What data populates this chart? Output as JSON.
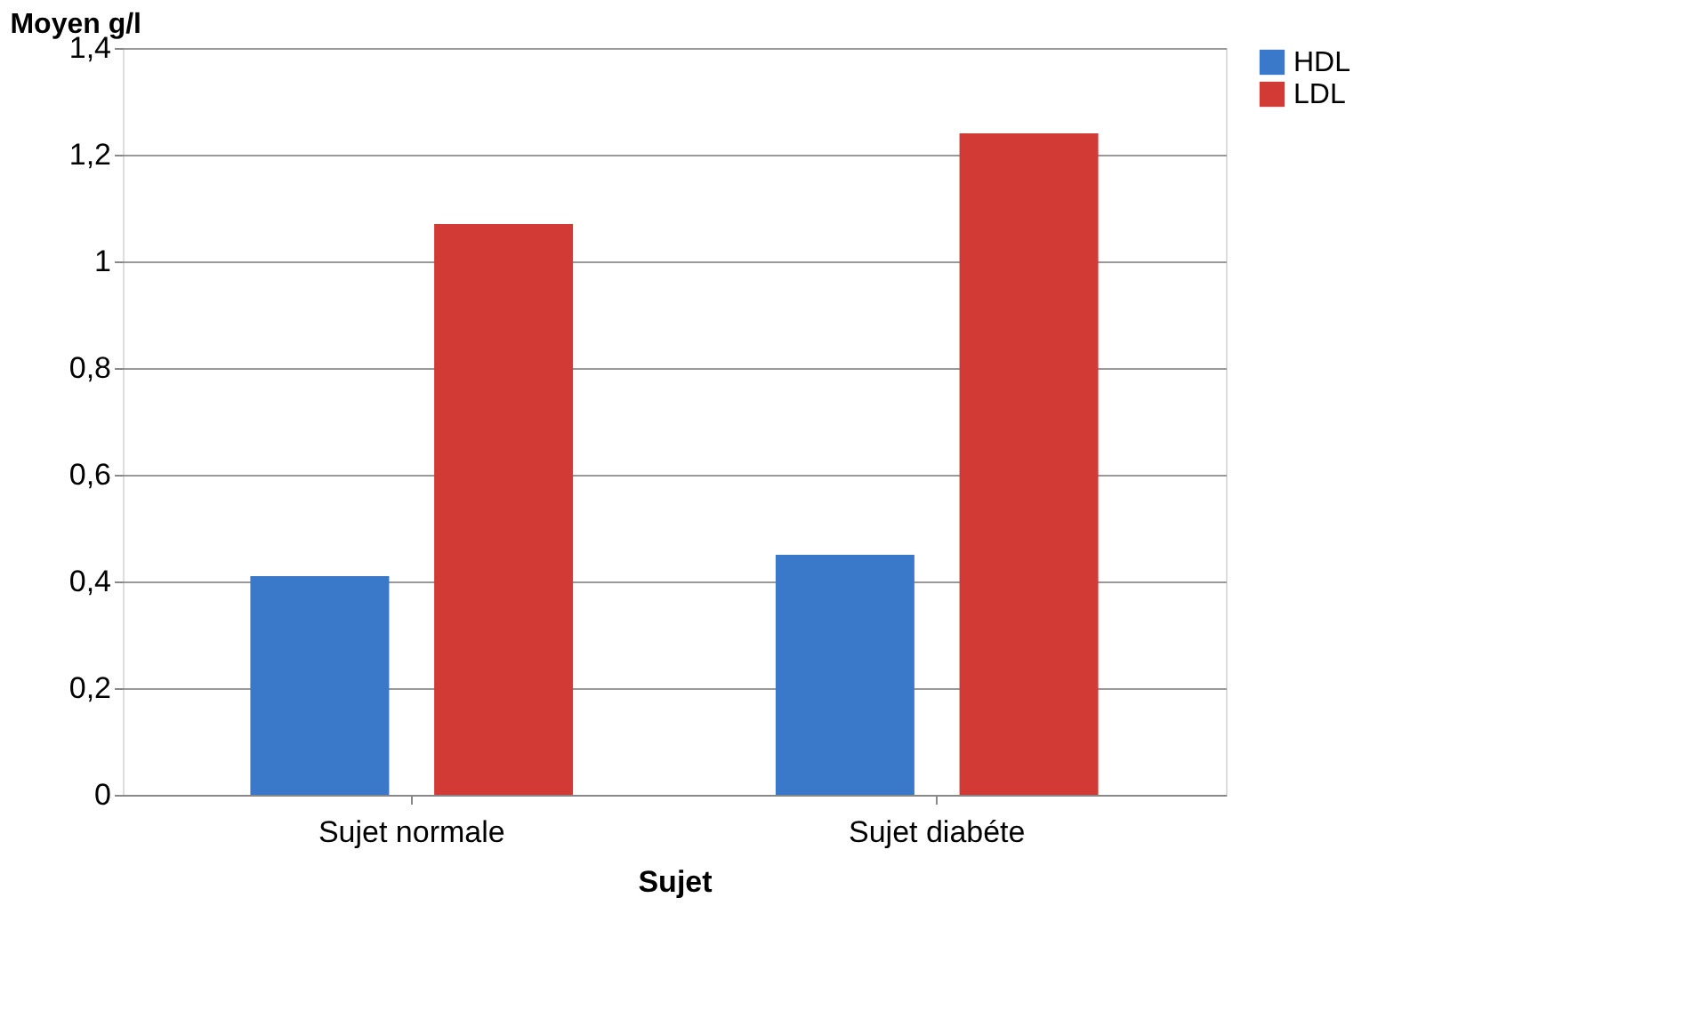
{
  "chart_data": {
    "type": "bar",
    "xlabel": "Sujet",
    "ylabel": "Moyen g/l",
    "categories": [
      "Sujet normale",
      "Sujet diabéte"
    ],
    "series": [
      {
        "name": "HDL",
        "color": "#3a78c9",
        "values": [
          0.41,
          0.45
        ]
      },
      {
        "name": "LDL",
        "color": "#d23a36",
        "values": [
          1.07,
          1.24
        ]
      }
    ],
    "ylim": [
      0,
      1.4
    ],
    "yticks": [
      0,
      {
        "value": 0.2,
        "label": "0,2"
      },
      {
        "value": 0.4,
        "label": "0,4"
      },
      {
        "value": 0.6,
        "label": "0,6"
      },
      {
        "value": 0.8,
        "label": "0,8"
      },
      1,
      {
        "value": 1.2,
        "label": "1,2"
      },
      {
        "value": 1.4,
        "label": "1,4"
      }
    ],
    "grid": "y",
    "legend": "right"
  }
}
